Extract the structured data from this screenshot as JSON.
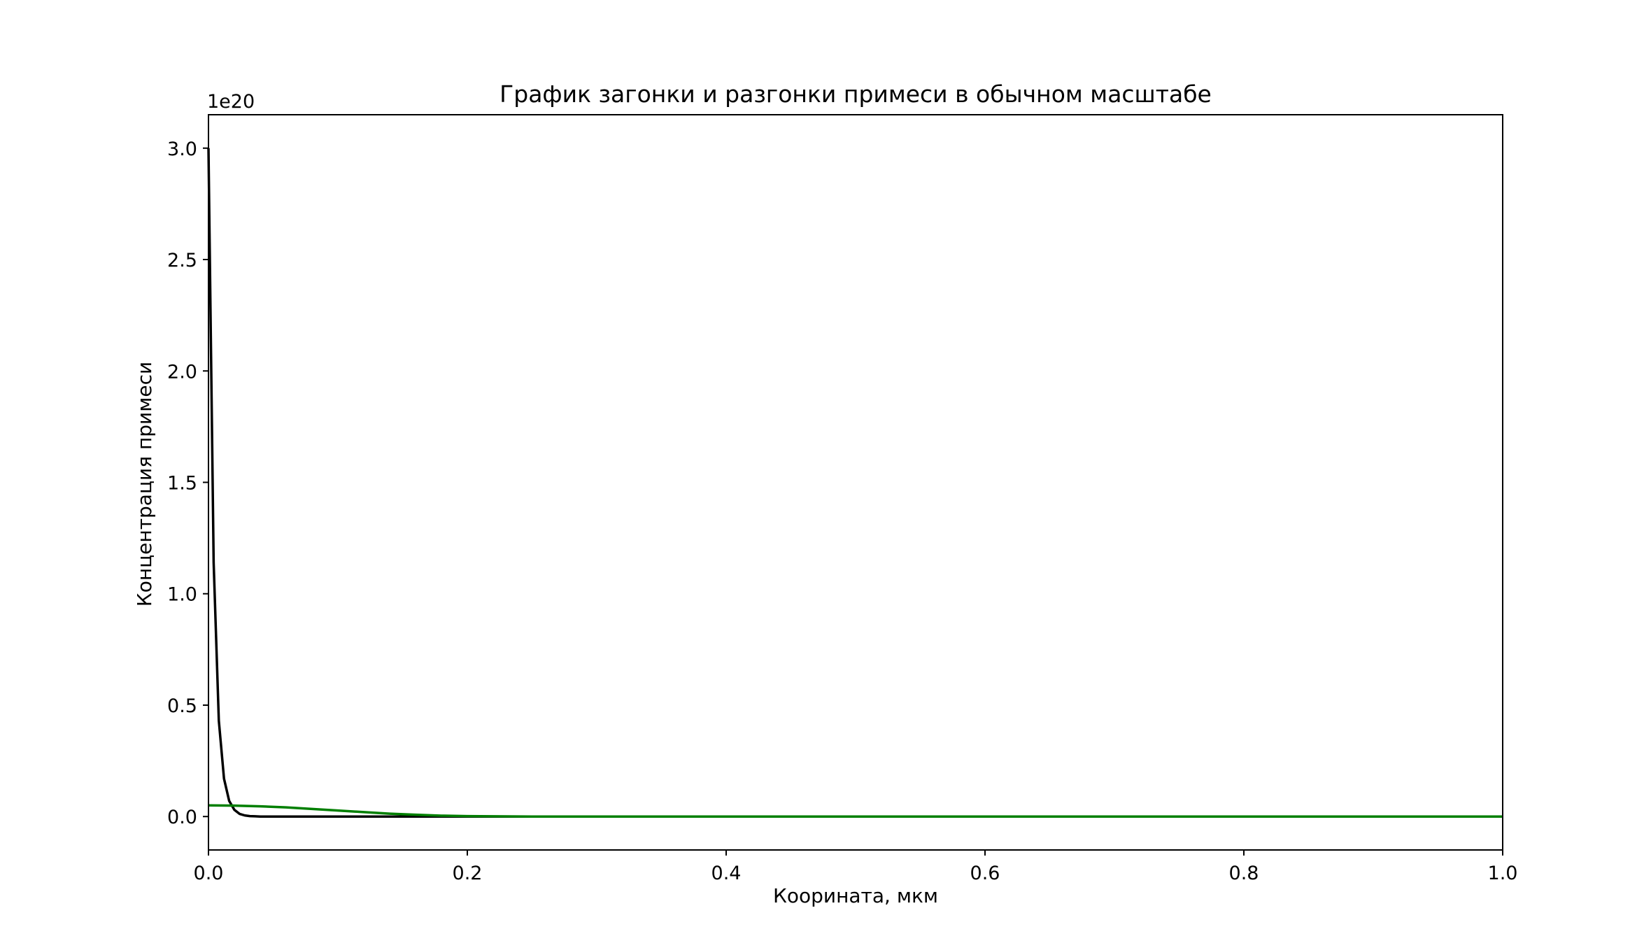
{
  "chart_data": {
    "type": "line",
    "title": "График загонки и разгонки примеси в обычном масштабе",
    "xlabel": "Коорината, мкм",
    "ylabel": "Концентрация примеси",
    "y_offset_text": "1e20",
    "y_multiplier": 1e+20,
    "xlim": [
      0.0,
      1.0
    ],
    "ylim": [
      -0.15,
      3.15
    ],
    "x_ticks": [
      0.0,
      0.2,
      0.4,
      0.6,
      0.8,
      1.0
    ],
    "x_tick_labels": [
      "0.0",
      "0.2",
      "0.4",
      "0.6",
      "0.8",
      "1.0"
    ],
    "y_ticks": [
      0.0,
      0.5,
      1.0,
      1.5,
      2.0,
      2.5,
      3.0
    ],
    "y_tick_labels": [
      "0.0",
      "0.5",
      "1.0",
      "1.5",
      "2.0",
      "2.5",
      "3.0"
    ],
    "grid": false,
    "legend": "none",
    "series": [
      {
        "color": "#000000",
        "x": [
          0.0,
          0.004,
          0.008,
          0.012,
          0.016,
          0.02,
          0.024,
          0.028,
          0.032,
          0.036,
          0.04,
          0.06,
          0.1,
          0.2,
          0.4,
          0.6,
          0.8,
          1.0
        ],
        "y": [
          3.0,
          1.14,
          0.43,
          0.17,
          0.07,
          0.03,
          0.012,
          0.005,
          0.002,
          0.001,
          0.0,
          0.0,
          0.0,
          0.0,
          0.0,
          0.0,
          0.0,
          0.0
        ]
      },
      {
        "color": "#007f00",
        "x": [
          0.0,
          0.02,
          0.04,
          0.06,
          0.08,
          0.1,
          0.12,
          0.14,
          0.16,
          0.18,
          0.2,
          0.22,
          0.25,
          0.3,
          0.4,
          0.6,
          0.8,
          1.0
        ],
        "y": [
          0.05,
          0.049,
          0.046,
          0.041,
          0.034,
          0.027,
          0.02,
          0.013,
          0.008,
          0.004,
          0.002,
          0.001,
          0.0,
          0.0,
          0.0,
          0.0,
          0.0,
          0.0
        ]
      }
    ]
  }
}
